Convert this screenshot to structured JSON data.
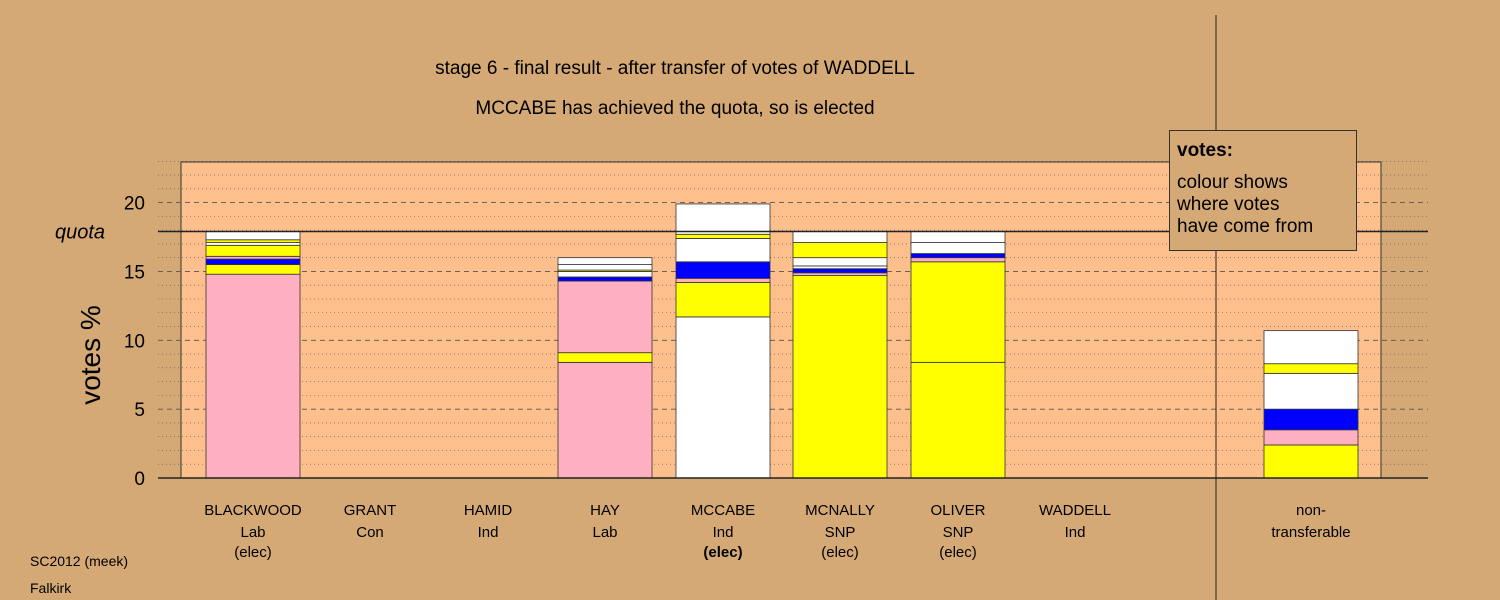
{
  "chart_data": {
    "type": "bar",
    "stacked": true,
    "title": "stage 6 - final result - after transfer of votes of WADDELL",
    "subtitle": "MCCABE has achieved the quota, so is elected",
    "ylabel": "votes %",
    "ylim": [
      0,
      23
    ],
    "yticks": [
      0,
      5,
      10,
      15,
      20
    ],
    "quota": {
      "value": 17.9,
      "label": "quota"
    },
    "colors": {
      "Lab": "#ffb0c0",
      "SNP": "#ffff00",
      "Ind": "#ffffff",
      "Con": "#0000ff",
      "background": "#d4a976",
      "plot_bg": "#fdc08c"
    },
    "categories": [
      {
        "name": "BLACKWOOD",
        "party": "Lab",
        "status": "(elec)",
        "bold": false,
        "segments": [
          {
            "value": 14.8,
            "color": "Lab"
          },
          {
            "value": 0.7,
            "color": "SNP"
          },
          {
            "value": 0.4,
            "color": "Con"
          },
          {
            "value": 0.2,
            "color": "Lab"
          },
          {
            "value": 0.8,
            "color": "SNP"
          },
          {
            "value": 0.2,
            "color": "Ind"
          },
          {
            "value": 0.2,
            "color": "SNP"
          },
          {
            "value": 0.6,
            "color": "Ind"
          }
        ]
      },
      {
        "name": "GRANT",
        "party": "Con",
        "status": "",
        "bold": false,
        "segments": []
      },
      {
        "name": "HAMID",
        "party": "Ind",
        "status": "",
        "bold": false,
        "segments": []
      },
      {
        "name": "HAY",
        "party": "Lab",
        "status": "",
        "bold": false,
        "segments": [
          {
            "value": 8.4,
            "color": "Lab"
          },
          {
            "value": 0.7,
            "color": "SNP"
          },
          {
            "value": 5.2,
            "color": "Lab"
          },
          {
            "value": 0.3,
            "color": "Con"
          },
          {
            "value": 0.4,
            "color": "Ind"
          },
          {
            "value": 0.1,
            "color": "SNP"
          },
          {
            "value": 0.4,
            "color": "Ind"
          },
          {
            "value": 0.5,
            "color": "Ind"
          }
        ]
      },
      {
        "name": "MCCABE",
        "party": "Ind",
        "status": "(elec)",
        "bold": true,
        "segments": [
          {
            "value": 11.7,
            "color": "Ind"
          },
          {
            "value": 2.5,
            "color": "SNP"
          },
          {
            "value": 0.3,
            "color": "Lab"
          },
          {
            "value": 1.2,
            "color": "Con"
          },
          {
            "value": 1.7,
            "color": "Ind"
          },
          {
            "value": 0.3,
            "color": "SNP"
          },
          {
            "value": 2.2,
            "color": "Ind"
          }
        ]
      },
      {
        "name": "MCNALLY",
        "party": "SNP",
        "status": "(elec)",
        "bold": false,
        "segments": [
          {
            "value": 14.7,
            "color": "SNP"
          },
          {
            "value": 0.2,
            "color": "Lab"
          },
          {
            "value": 0.3,
            "color": "Con"
          },
          {
            "value": 0.2,
            "color": "Ind"
          },
          {
            "value": 0.6,
            "color": "Ind"
          },
          {
            "value": 1.1,
            "color": "SNP"
          },
          {
            "value": 0.8,
            "color": "Ind"
          }
        ]
      },
      {
        "name": "OLIVER",
        "party": "SNP",
        "status": "(elec)",
        "bold": false,
        "segments": [
          {
            "value": 8.4,
            "color": "SNP"
          },
          {
            "value": 7.3,
            "color": "SNP"
          },
          {
            "value": 0.3,
            "color": "Lab"
          },
          {
            "value": 0.3,
            "color": "Con"
          },
          {
            "value": 0.8,
            "color": "Ind"
          },
          {
            "value": 0.8,
            "color": "Ind"
          }
        ]
      },
      {
        "name": "WADDELL",
        "party": "Ind",
        "status": "",
        "bold": false,
        "segments": []
      },
      {
        "name": "non-",
        "party": "transferable",
        "status": "",
        "bold": false,
        "segments": [
          {
            "value": 2.4,
            "color": "SNP"
          },
          {
            "value": 1.1,
            "color": "Lab"
          },
          {
            "value": 1.5,
            "color": "Con"
          },
          {
            "value": 2.6,
            "color": "Ind"
          },
          {
            "value": 0.7,
            "color": "SNP"
          },
          {
            "value": 2.4,
            "color": "Ind"
          }
        ]
      }
    ]
  },
  "legend": {
    "title": "votes:",
    "lines": [
      "colour shows",
      "where votes",
      "have come from"
    ]
  },
  "footer": {
    "line1": "SC2012 (meek)",
    "line2": "Falkirk"
  }
}
